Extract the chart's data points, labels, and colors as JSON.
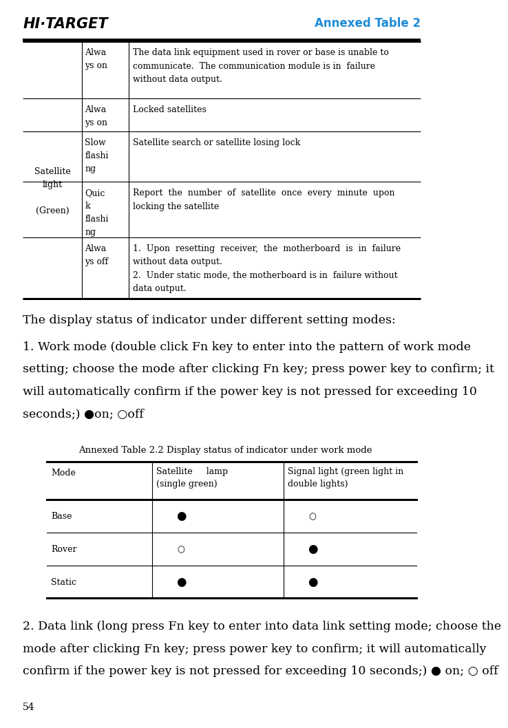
{
  "page_width": 7.97,
  "page_height": 13.49,
  "bg_color": "#ffffff",
  "header_logo_text": "HI·TARGET",
  "header_title": "Annexed Table 2",
  "header_title_color": "#1f8dd6",
  "top_table_rows": [
    {
      "col2": "Alwa\nys on",
      "col3": "The data link equipment used in rover or base is unable to\ncommunicate.  The communication module is in  failure\nwithout data output."
    },
    {
      "col2": "Alwa\nys on",
      "col3": "Locked satellites"
    },
    {
      "col2": "Slow\nflashi\nng",
      "col3": "Satellite search or satellite losing lock"
    },
    {
      "col2": "Quic\nk\nflashi\nng",
      "col3": "Report  the  number  of  satellite  once  every  minute  upon\nlocking the satellite"
    },
    {
      "col2": "Alwa\nys off",
      "col3": "1.  Upon  resetting  receiver,  the  motherboard  is  in  failure\nwithout data output.\n2.  Under static mode, the motherboard is in  failure without\ndata output."
    }
  ],
  "col1_text": "Satellite\nlight\n\n(Green)",
  "para1": "The display status of indicator under different setting modes:",
  "para2_lines": [
    "1. Work mode (double click Fn key to enter into the pattern of work mode",
    "setting; choose the mode after clicking Fn key; press power key to confirm; it",
    "will automatically confirm if the power key is not pressed for exceeding 10",
    "seconds;) ●on; ○off"
  ],
  "table22_title": "Annexed Table 2.2 Display status of indicator under work mode",
  "table22_headers": [
    "Mode",
    "Satellite     lamp\n(single green)",
    "Signal light (green light in\ndouble lights)"
  ],
  "table22_rows": [
    [
      "Base",
      "●",
      "○"
    ],
    [
      "Rover",
      "○",
      "●"
    ],
    [
      "Static",
      "●",
      "●"
    ]
  ],
  "para3_lines": [
    "2. Data link (long press Fn key to enter into data link setting mode; choose the",
    "mode after clicking Fn key; press power key to confirm; it will automatically",
    "confirm if the power key is not pressed for exceeding 10 seconds;) ● on; ○ off"
  ],
  "footer_text": "54",
  "row_heights": [
    1.08,
    0.62,
    0.95,
    1.05,
    1.15
  ]
}
